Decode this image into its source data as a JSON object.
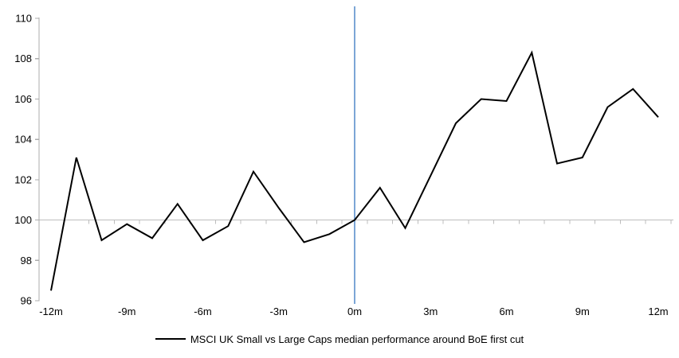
{
  "chart_data": {
    "type": "line",
    "title": "",
    "xlabel": "",
    "ylabel": "",
    "x_axis_unit": "months relative to first cut",
    "ylim": [
      96,
      110
    ],
    "yticks": [
      110,
      108,
      106,
      104,
      102,
      100,
      98,
      96
    ],
    "xticks": [
      {
        "x": -12,
        "label": "-12m"
      },
      {
        "x": -9,
        "label": "-9m"
      },
      {
        "x": -6,
        "label": "-6m"
      },
      {
        "x": -3,
        "label": "-3m"
      },
      {
        "x": 0,
        "label": "0m"
      },
      {
        "x": 3,
        "label": "3m"
      },
      {
        "x": 6,
        "label": "6m"
      },
      {
        "x": 9,
        "label": "9m"
      },
      {
        "x": 12,
        "label": "12m"
      }
    ],
    "baseline_value": 100,
    "event_line": {
      "x": 0,
      "color": "#5089C8"
    },
    "colors": {
      "series": "#000000",
      "axis": "#ACACAC",
      "baseline": "#BDBDBD",
      "text": "#000000"
    },
    "legend_position": "bottom",
    "grid": false,
    "series": [
      {
        "name": "MSCI UK Small vs Large Caps median performance around BoE first cut",
        "color": "#000000",
        "x": [
          -12,
          -11,
          -10,
          -9,
          -8,
          -7,
          -6,
          -5,
          -4,
          -3,
          -2,
          -1,
          0,
          1,
          2,
          3,
          4,
          5,
          6,
          7,
          8,
          9,
          10,
          11,
          12
        ],
        "values": [
          96.5,
          103.1,
          99.0,
          99.8,
          99.1,
          100.8,
          99.0,
          99.7,
          102.4,
          100.6,
          98.9,
          99.3,
          100.0,
          101.6,
          99.6,
          102.2,
          104.8,
          106.0,
          105.9,
          108.3,
          102.8,
          103.1,
          105.6,
          106.5,
          105.1
        ]
      }
    ]
  }
}
